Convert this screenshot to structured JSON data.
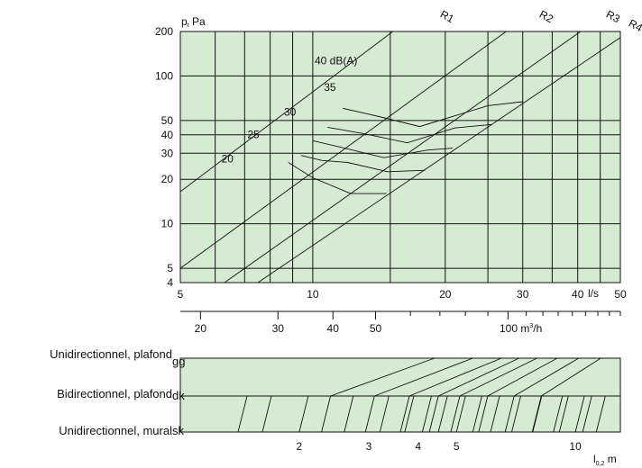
{
  "chart_data": {
    "type": "line",
    "xscale": "log",
    "yscale": "log",
    "xlim": [
      5,
      50
    ],
    "ylim": [
      4,
      200
    ],
    "grid": true,
    "background_color": "#d6ecd2",
    "ylabel_parts": [
      "p",
      "t",
      " Pa"
    ],
    "xunit": "l/s",
    "yticks": [
      4,
      5,
      10,
      20,
      30,
      40,
      50,
      100,
      200
    ],
    "ytick_labels": [
      "4",
      "5",
      "10",
      "20",
      "30",
      "40",
      "50",
      "100",
      "200"
    ],
    "xticks": [
      5,
      10,
      20,
      30,
      40,
      50
    ],
    "xtick_labels": [
      "5",
      "10",
      "20",
      "30",
      "40",
      "50"
    ],
    "m3h_unit_parts": [
      "100 m",
      "3",
      "/h"
    ],
    "m3h_ticks": [
      20,
      30,
      40,
      50,
      100
    ],
    "m3h_tick_labels": [
      "20",
      "30",
      "40",
      "50",
      ""
    ],
    "m3h_minor_ticks": [
      60,
      70,
      80,
      90,
      110,
      120,
      130,
      140,
      150,
      160,
      170,
      180
    ],
    "duct_lines": [
      {
        "name": "R1",
        "points": [
          [
            5,
            16.5
          ],
          [
            15.2,
            200
          ]
        ]
      },
      {
        "name": "R2",
        "points": [
          [
            5,
            5
          ],
          [
            27.5,
            200
          ]
        ]
      },
      {
        "name": "R3",
        "points": [
          [
            6.3,
            4
          ],
          [
            40.6,
            200
          ]
        ]
      },
      {
        "name": "R4",
        "points": [
          [
            7.5,
            4
          ],
          [
            50,
            182
          ]
        ]
      }
    ],
    "series": [
      {
        "name": "20",
        "points": [
          [
            8.8,
            26
          ],
          [
            10,
            20.5
          ],
          [
            12.2,
            16
          ],
          [
            14.7,
            16
          ]
        ]
      },
      {
        "name": "25",
        "points": [
          [
            9.4,
            29
          ],
          [
            10.5,
            26.8
          ],
          [
            12,
            26
          ],
          [
            14.8,
            22.5
          ],
          [
            18,
            23
          ]
        ]
      },
      {
        "name": "30",
        "points": [
          [
            10,
            36.5
          ],
          [
            11.8,
            32.5
          ],
          [
            14.5,
            28
          ],
          [
            18.2,
            31.5
          ],
          [
            20.8,
            32.5
          ]
        ]
      },
      {
        "name": "35",
        "points": [
          [
            10.8,
            45
          ],
          [
            13.2,
            40.5
          ],
          [
            16.4,
            35.3
          ],
          [
            21,
            44.5
          ],
          [
            25.5,
            47
          ]
        ]
      },
      {
        "name": "40 dB(A)",
        "points": [
          [
            11.7,
            60.5
          ],
          [
            14,
            53.5
          ],
          [
            17.5,
            45.5
          ],
          [
            25,
            63
          ],
          [
            30,
            67
          ]
        ]
      }
    ],
    "annotations": [
      {
        "text": "20",
        "at": [
          6.2,
          26
        ]
      },
      {
        "text": "25",
        "at": [
          7.1,
          38
        ]
      },
      {
        "text": "30",
        "at": [
          8.6,
          54
        ]
      },
      {
        "text": "35",
        "at": [
          10.6,
          79
        ]
      },
      {
        "text": "40 dB(A)",
        "at": [
          10.1,
          120
        ]
      }
    ],
    "throw_scale": {
      "rows": [
        {
          "label": "Unidirectionnel, plafond",
          "suffix": "gg"
        },
        {
          "label": "Bidirectionnel, plafond",
          "suffix": "dk"
        },
        {
          "label": "Unidirectionnel, mural",
          "suffix": "sk"
        }
      ],
      "axis_unit_parts": [
        "l",
        "0,2",
        " m"
      ],
      "ticks": [
        2,
        3,
        4,
        5,
        10
      ],
      "tick_labels": [
        "2",
        "3",
        "4",
        "5",
        "10"
      ],
      "xlim": [
        1,
        13
      ],
      "bottom_row_marks": [
        1.4,
        2,
        2.6,
        3.2,
        3.7,
        4.1,
        4.5,
        5,
        5.5,
        6.1,
        6.9,
        7.8,
        8.8,
        10,
        11.3
      ],
      "middle_row_marks": [
        1.7,
        2.4,
        3.1,
        3.8,
        4.5,
        5.1,
        6,
        7,
        8.2,
        9.6,
        11
      ],
      "upper_row_links": [
        [
          2.4,
          4.4
        ],
        [
          3.1,
          5.5
        ],
        [
          3.8,
          6.5
        ],
        [
          4.5,
          7.2
        ],
        [
          5.1,
          8
        ],
        [
          6,
          9
        ],
        [
          7,
          10.2
        ],
        [
          8.2,
          11.6
        ]
      ]
    }
  }
}
